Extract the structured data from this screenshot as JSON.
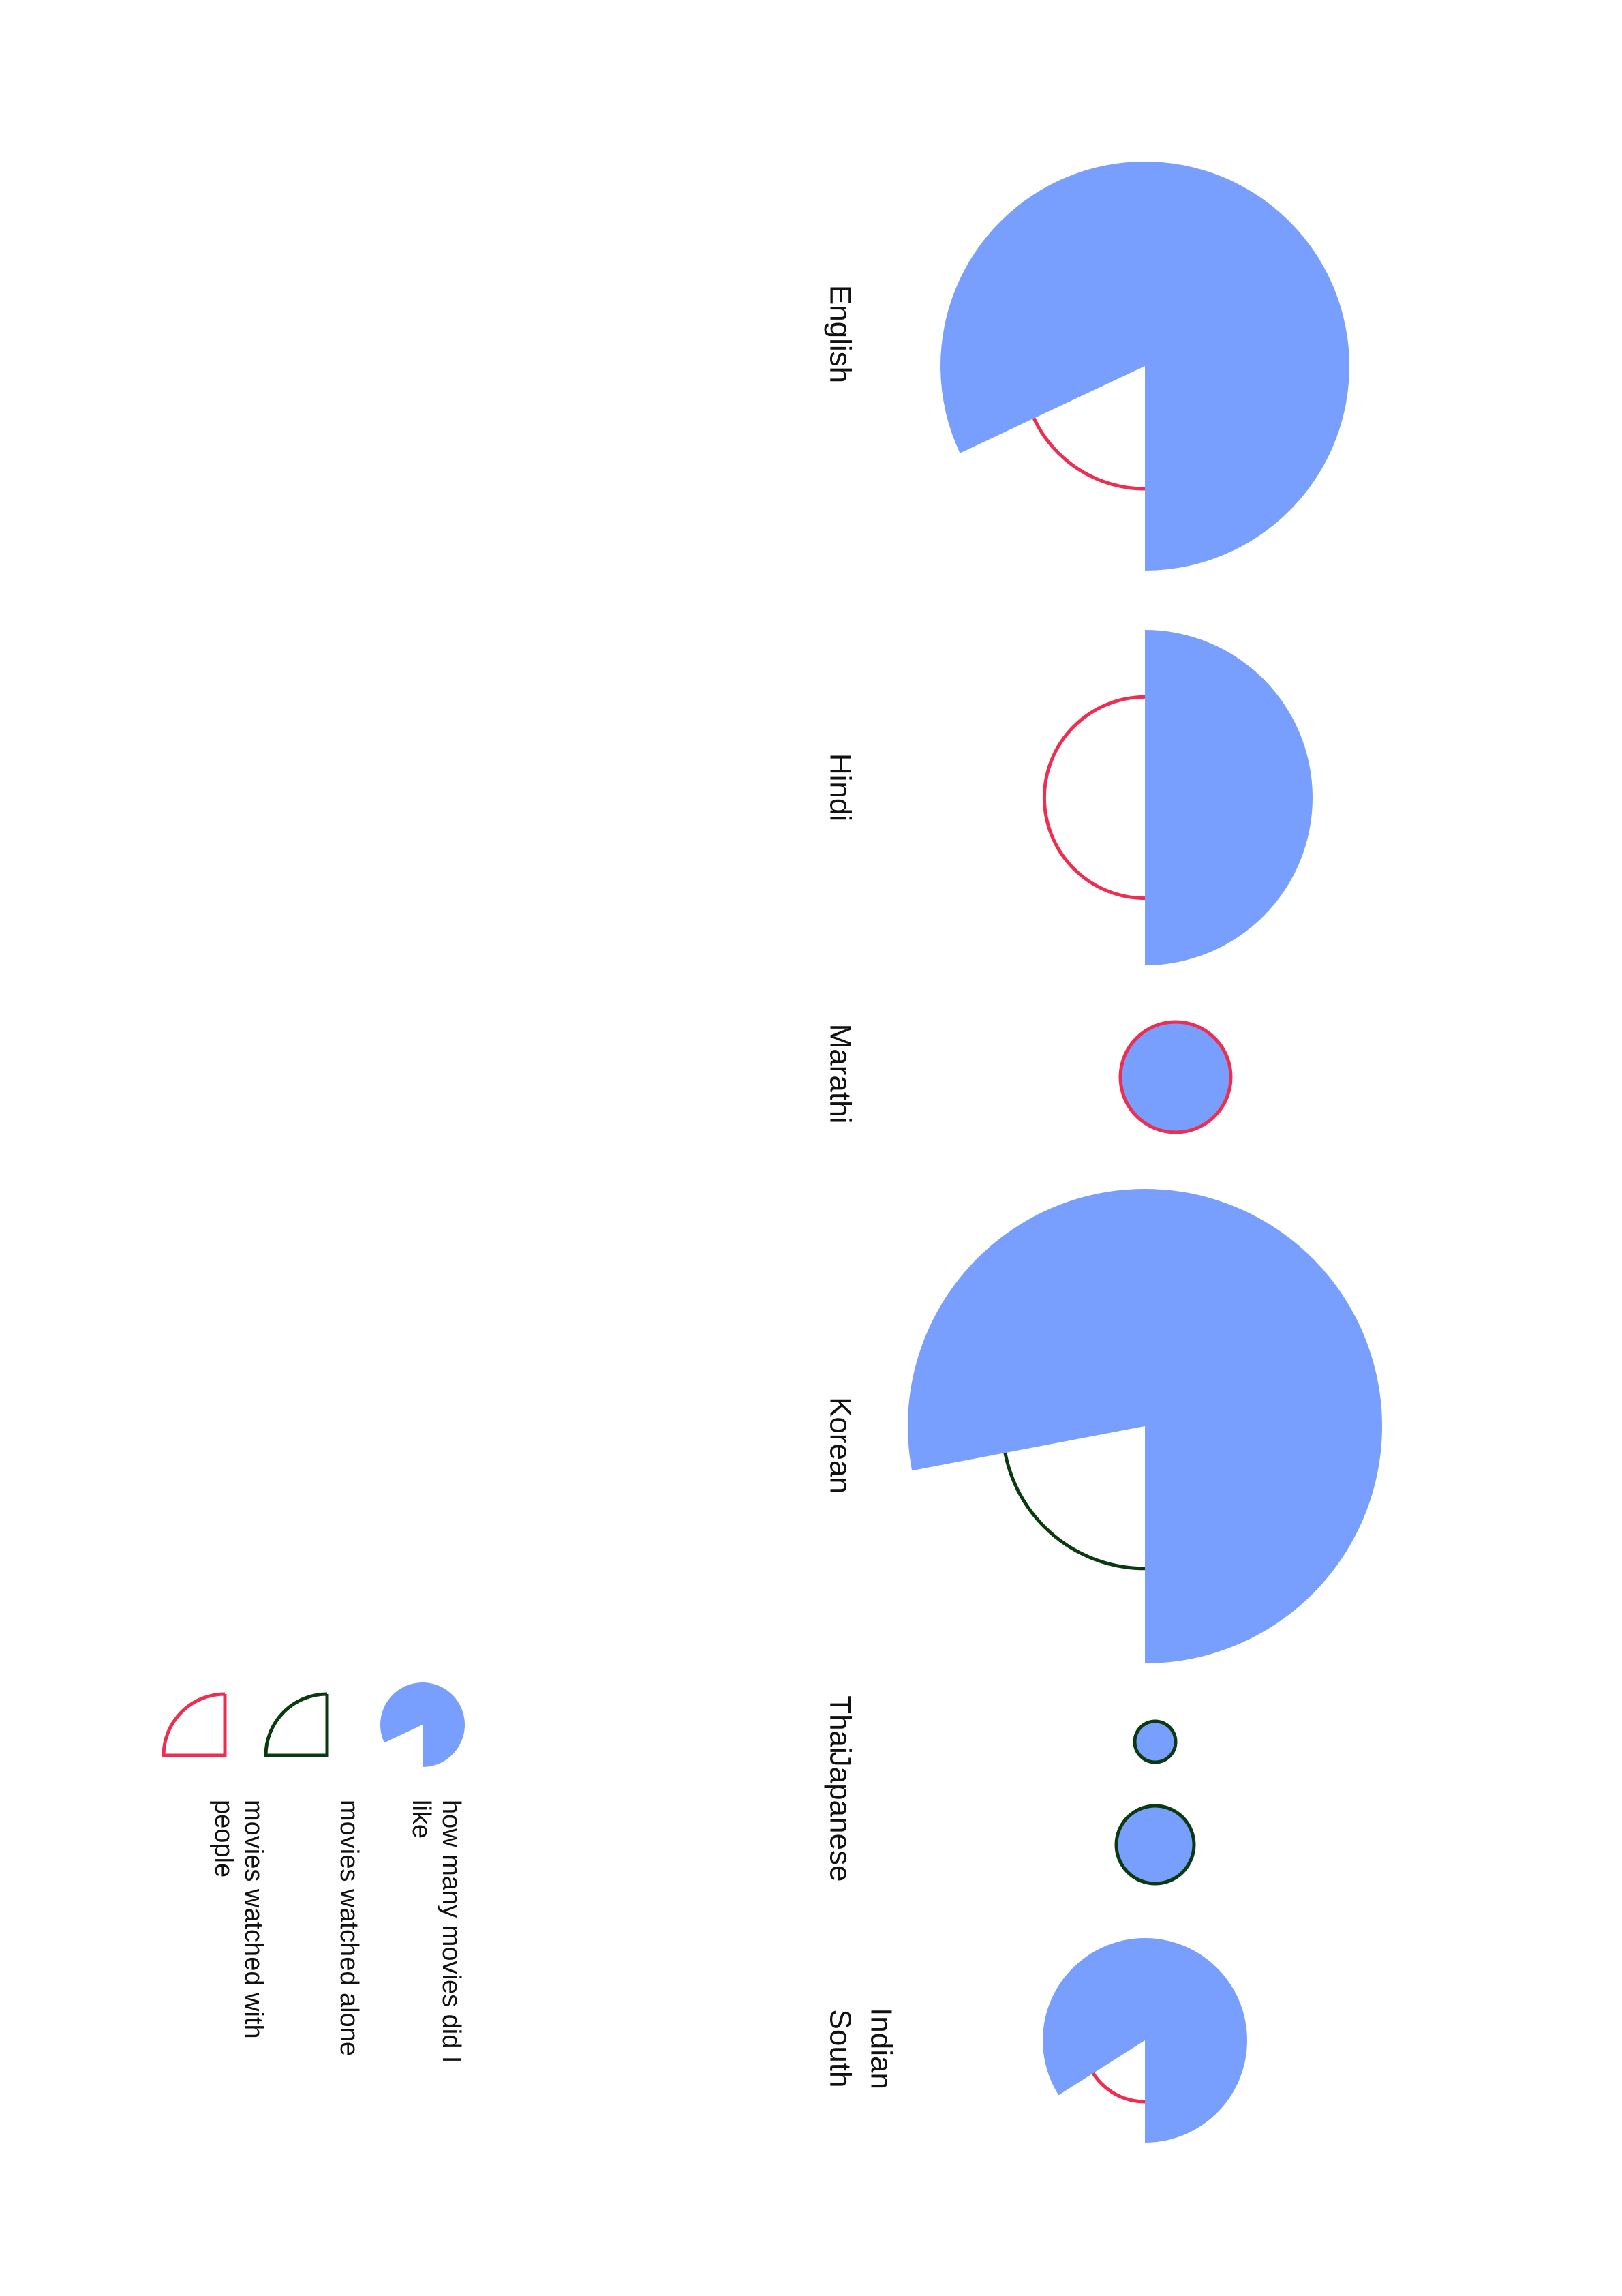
{
  "colors": {
    "liked": "#789ffd",
    "with_people": "#ee2d51",
    "alone": "#0b3a10",
    "text": "#111111",
    "background": "#ffffff"
  },
  "chart_data": {
    "type": "pie",
    "series": [
      {
        "name": "how many movies did I like",
        "encoding": "filled blue wedge"
      },
      {
        "name": "movies watched alone",
        "encoding": "dark green outline"
      },
      {
        "name": "movies watched with people",
        "encoding": "red outline"
      }
    ],
    "categories": [
      "English",
      "Hindi",
      "Marathi",
      "Korean",
      "Thai",
      "Japanese",
      "South Indian"
    ],
    "items": [
      {
        "label": "English",
        "relative_size": 1.0,
        "liked_fraction": 0.82,
        "watched": "with people"
      },
      {
        "label": "Hindi",
        "relative_size": 0.82,
        "liked_fraction": 0.5,
        "watched": "with people"
      },
      {
        "label": "Marathi",
        "relative_size": 0.27,
        "liked_fraction": 1.0,
        "watched": "with people"
      },
      {
        "label": "Korean",
        "relative_size": 1.16,
        "liked_fraction": 0.78,
        "watched": "alone"
      },
      {
        "label": "Thai",
        "relative_size": 0.1,
        "liked_fraction": 1.0,
        "watched": "alone"
      },
      {
        "label": "Japanese",
        "relative_size": 0.19,
        "liked_fraction": 1.0,
        "watched": "alone"
      },
      {
        "label": "South Indian",
        "relative_size": 0.5,
        "liked_fraction": 0.84,
        "watched": "with people"
      }
    ],
    "legend": {
      "placement": "bottom-left",
      "entries": [
        {
          "label": "how many movies did I like",
          "swatch": "liked"
        },
        {
          "label": "movies watched alone",
          "swatch": "alone"
        },
        {
          "label": "movies watched with people",
          "swatch": "with_people"
        }
      ]
    }
  }
}
